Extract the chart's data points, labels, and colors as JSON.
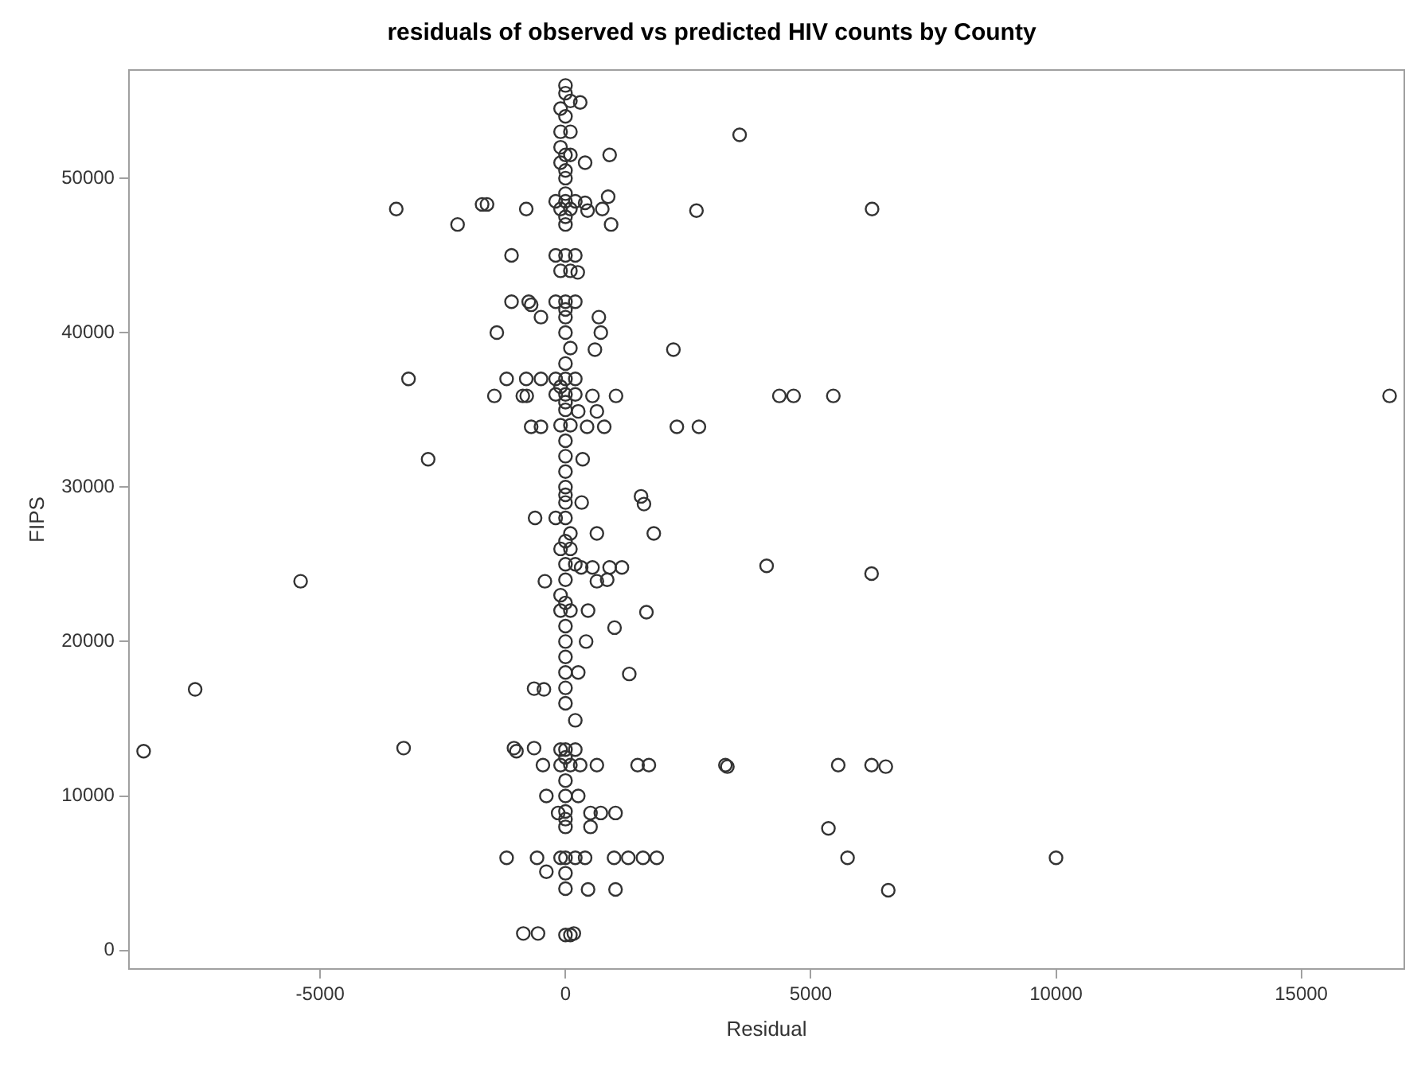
{
  "chart_data": {
    "type": "scatter",
    "title": "residuals of observed vs predicted HIV counts by County",
    "xlabel": "Residual",
    "ylabel": "FIPS",
    "xlim": [
      -8900,
      17100
    ],
    "xticks": [
      -5000,
      0,
      5000,
      10000,
      15000
    ],
    "ylim": [
      -1200,
      57000
    ],
    "yticks": [
      0,
      10000,
      20000,
      30000,
      40000,
      50000
    ],
    "grid": false,
    "legend": false,
    "marker": "circle",
    "series": [
      {
        "color": "#333333",
        "x": [
          0,
          0,
          100,
          -100,
          0,
          -100,
          100,
          -100,
          0,
          100,
          -100,
          0,
          0,
          0,
          -200,
          0,
          200,
          -100,
          100,
          0,
          0,
          -200,
          0,
          200,
          -100,
          100,
          -200,
          0,
          200,
          0,
          0,
          0,
          100,
          0,
          -200,
          0,
          200,
          -100,
          -200,
          0,
          200,
          0,
          0,
          -100,
          100,
          0,
          0,
          0,
          0,
          0,
          0,
          -200,
          0,
          100,
          0,
          -100,
          100,
          0,
          200,
          0,
          -100,
          0,
          -100,
          100,
          0,
          0,
          0,
          0,
          0,
          0,
          -100,
          0,
          200,
          0,
          -100,
          100,
          300,
          0,
          0,
          0,
          0,
          -100,
          0,
          200,
          0,
          0,
          0,
          100,
          -3450,
          -2200,
          -1700,
          -1600,
          -800,
          -1100,
          -1100,
          -750,
          -700,
          -500,
          -1400,
          -3200,
          -1200,
          -800,
          -500,
          -1450,
          -870,
          -790,
          -700,
          -500,
          -2800,
          900,
          300,
          400,
          870,
          930,
          400,
          750,
          450,
          250,
          680,
          720,
          600,
          2200,
          3550,
          2670,
          6250,
          550,
          1030,
          4360,
          4650,
          5460,
          16800,
          260,
          640,
          440,
          790,
          2270,
          2720,
          350,
          1540,
          1600,
          330,
          -8600,
          -7550,
          -5400,
          -3300,
          -1050,
          -1000,
          -640,
          -460,
          -1200,
          -580,
          -390,
          -860,
          -560,
          170,
          -390,
          0,
          260,
          -150,
          510,
          720,
          1020,
          510,
          400,
          990,
          1280,
          1580,
          1860,
          460,
          1020,
          640,
          1470,
          1700,
          3260,
          3300,
          4100,
          -420,
          640,
          850,
          320,
          550,
          900,
          1150,
          640,
          1800,
          460,
          1650,
          1000,
          420,
          260,
          1300,
          -640,
          -440,
          200,
          -620,
          6240,
          5560,
          6240,
          6530,
          5360,
          5750,
          10000,
          6580
        ],
        "values": [
          56000,
          55500,
          55000,
          54500,
          54000,
          53000,
          53000,
          52000,
          51500,
          51500,
          51000,
          50500,
          50000,
          49000,
          48500,
          48500,
          48500,
          48000,
          48000,
          47500,
          47000,
          45000,
          45000,
          45000,
          44000,
          44000,
          42000,
          42000,
          42000,
          41500,
          41000,
          40000,
          39000,
          38000,
          37000,
          37000,
          37000,
          36500,
          36000,
          36000,
          36000,
          35500,
          35000,
          34000,
          34000,
          33000,
          32000,
          31000,
          30000,
          29500,
          29000,
          28000,
          28000,
          27000,
          26500,
          26000,
          26000,
          25000,
          25000,
          24000,
          23000,
          22500,
          22000,
          22000,
          21000,
          20000,
          19000,
          18000,
          17000,
          16000,
          13000,
          13000,
          13000,
          12500,
          12000,
          12000,
          12000,
          11000,
          9000,
          8500,
          8000,
          6000,
          6000,
          6000,
          5000,
          4000,
          1000,
          1000,
          48000,
          47000,
          48300,
          48300,
          48000,
          45000,
          42000,
          42000,
          41800,
          41000,
          40000,
          37000,
          37000,
          37000,
          37000,
          35900,
          35900,
          35900,
          33900,
          33900,
          31800,
          51500,
          54900,
          51000,
          48800,
          47000,
          48400,
          48000,
          47900,
          43900,
          41000,
          40000,
          38900,
          38900,
          52800,
          47900,
          48000,
          35900,
          35900,
          35900,
          35900,
          35900,
          35900,
          34900,
          34900,
          33900,
          33900,
          33900,
          33900,
          31800,
          29400,
          28900,
          29000,
          12900,
          16900,
          23900,
          13100,
          13100,
          12900,
          13100,
          12000,
          6000,
          6000,
          5100,
          1100,
          1100,
          1100,
          10000,
          10000,
          10000,
          8900,
          8900,
          8900,
          8900,
          8000,
          6000,
          6000,
          6000,
          6000,
          6000,
          3950,
          3950,
          12000,
          12000,
          12000,
          12000,
          11900,
          24900,
          23900,
          23900,
          24000,
          24800,
          24800,
          24800,
          24800,
          27000,
          27000,
          22000,
          21900,
          20900,
          20000,
          18000,
          17900,
          16950,
          16900,
          14900,
          28000,
          24400,
          12000,
          12000,
          11900,
          7900,
          6000,
          6000,
          3900
        ]
      }
    ]
  }
}
